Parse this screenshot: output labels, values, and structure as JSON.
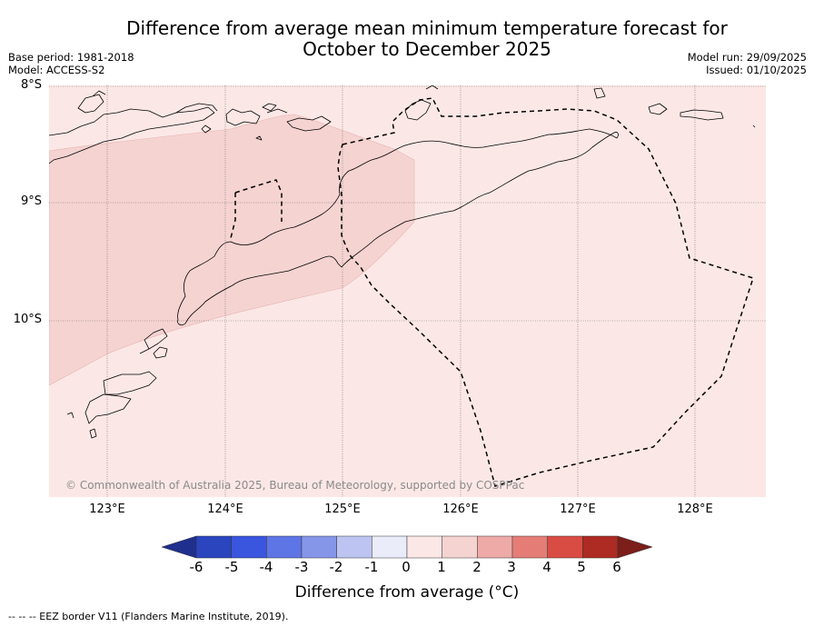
{
  "title": {
    "line1": "Difference from average mean minimum temperature forecast for",
    "line2": "October to December 2025"
  },
  "meta": {
    "base_period": "Base period: 1981-2018",
    "model": "Model: ACCESS-S2",
    "model_run": "Model run: 29/09/2025",
    "issued": "Issued: 01/10/2025"
  },
  "map": {
    "lat_labels": [
      "8°S",
      "9°S",
      "10°S"
    ],
    "lon_labels": [
      "123°E",
      "124°E",
      "125°E",
      "126°E",
      "127°E",
      "128°E"
    ],
    "copyright": "© Commonwealth of Australia 2025, Bureau of Meteorology, supported by COSPPac",
    "background_anomaly_color": "#fbe8e6",
    "warmer_zone_color": "#f5d3d1"
  },
  "colorbar": {
    "ticks": [
      "-6",
      "-5",
      "-4",
      "-3",
      "-2",
      "-1",
      "0",
      "1",
      "2",
      "3",
      "4",
      "5",
      "6"
    ],
    "colors": [
      "#1f2f8e",
      "#2b45bf",
      "#3a55de",
      "#5e75e6",
      "#8596e9",
      "#bdc4f2",
      "#eaecfa",
      "#fbe8e6",
      "#f5d3d1",
      "#eeaaa7",
      "#e57d77",
      "#d94c43",
      "#ad2b23",
      "#7c1e1a"
    ],
    "label": "Difference from average (°C)"
  },
  "footnote": "-- -- -- EEZ border V11 (Flanders Marine Institute, 2019)."
}
